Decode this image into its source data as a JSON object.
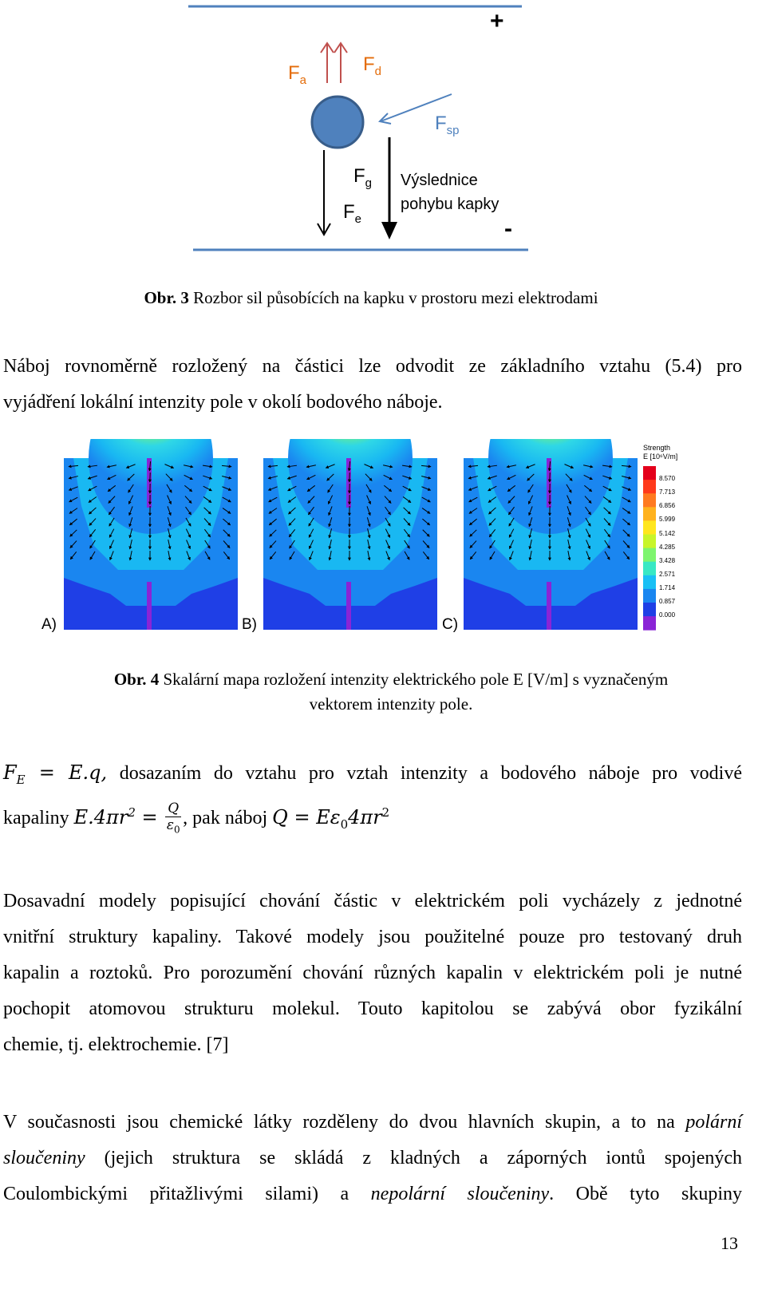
{
  "figure3": {
    "plus": "+",
    "minus": "-",
    "forces": {
      "fa": {
        "base": "F",
        "sub": "a"
      },
      "fd": {
        "base": "F",
        "sub": "d"
      },
      "fsp": {
        "base": "F",
        "sub": "sp"
      },
      "fg": {
        "base": "F",
        "sub": "g"
      },
      "fe": {
        "base": "F",
        "sub": "e"
      }
    },
    "result_label_line1": "Výslednice",
    "result_label_line2": "pohybu kapky",
    "colors": {
      "electrode": "#4f81bd",
      "drop": "#4f81bd",
      "drop_stroke": "#385d8a",
      "up_arrows": "#c0504d",
      "sp_arrow": "#4f81bd",
      "force_label": "#e46c0a",
      "sp_label": "#4f81bd"
    },
    "caption_bold": "Obr. 3",
    "caption_text": " Rozbor sil působících na kapku v prostoru mezi elektrodami"
  },
  "para1": {
    "line1": "Náboj rovnoměrně rozložený na částici lze odvodit ze základního vztahu (5.4) pro",
    "line2": "vyjádření lokální intenzity pole v okolí bodového náboje."
  },
  "figure4": {
    "panels": [
      {
        "label": "A)"
      },
      {
        "label": "B)"
      },
      {
        "label": "C)"
      }
    ],
    "legend": {
      "title_line1": "Strength",
      "title_line2": "E [10⁶V/m]",
      "values": [
        "8.570",
        "7.713",
        "6.856",
        "5.999",
        "5.142",
        "4.285",
        "3.428",
        "2.571",
        "1.714",
        "0.857",
        "0.000"
      ],
      "colors": [
        "#e4001b",
        "#ff3a1c",
        "#ff7a20",
        "#ffb21e",
        "#ffe61e",
        "#c8f52a",
        "#7ef56e",
        "#38e8c4",
        "#19c0f5",
        "#1a86f0",
        "#1f3fe6",
        "#8a24d6"
      ]
    },
    "caption_bold": "Obr. 4",
    "caption_text": " Skalární mapa rozložení intenzity elektrického pole E [V/m] s vyznačeným",
    "caption_line2": "vektorem intenzity pole."
  },
  "para2": {
    "eq1_lhs": "F",
    "eq1_lhs_sub": "E",
    "eq1_rhs": " = E.q,",
    "text1": "dosazaním do vztahu pro vztah intenzity a bodového náboje pro vodivé",
    "text2": "kapaliny",
    "eq2_left": "E.4πr",
    "eq2_exp": "2",
    "eq2_eq": " = ",
    "eq2_num": "Q",
    "eq2_den": "ε",
    "eq2_den_sub": "0",
    "text3": ", pak náboj",
    "eq3_q": "Q = Eε",
    "eq3_sub": "0",
    "eq3_rest": "4πr",
    "eq3_exp": "2"
  },
  "para3": {
    "lines": [
      "Dosavadní modely popisující chování částic v elektrickém poli vycházely z jednotné",
      "vnitřní struktury kapaliny. Takové modely jsou použitelné pouze pro testovaný druh",
      "kapalin a roztoků. Pro porozumění chování různých kapalin v elektrickém poli je nutné",
      "pochopit atomovou strukturu molekul. Touto kapitolou se zabývá obor fyzikální",
      "chemie, tj. elektrochemie. [7]"
    ]
  },
  "para4": {
    "line1_text": "V současnosti jsou chemické látky rozděleny do dvou hlavních skupin, a to na",
    "line1_em": "polární",
    "line2_em": "sloučeniny",
    "line2_text": "(jejich struktura se skládá z kladných a záporných iontů spojených",
    "line3_text1": "Coulombickými přitažlivými silami) a",
    "line3_em": "nepolární sloučeniny",
    "line3_text2": ". Obě tyto skupiny"
  },
  "page_number": "13"
}
